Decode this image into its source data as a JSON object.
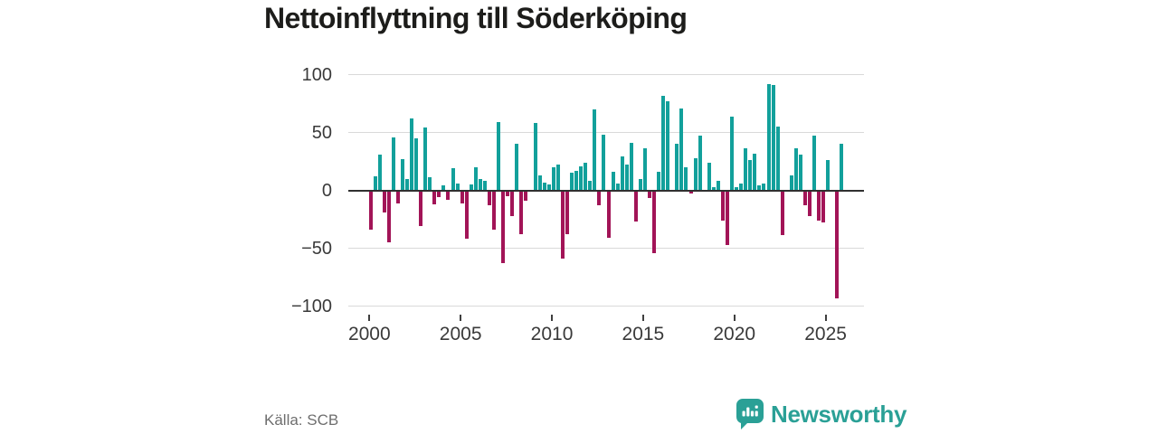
{
  "title": "Nettoinflyttning till Söderköping",
  "source": "Källa: SCB",
  "brand": {
    "name": "Newsworthy",
    "color": "#2aa096"
  },
  "chart_data": {
    "type": "bar",
    "title": "Nettoinflyttning till Söderköping",
    "frequency": "quarterly",
    "period_start": "2000 Q1",
    "period_end": "2025 Q4",
    "values": [
      -34,
      12,
      31,
      -19,
      -45,
      46,
      -11,
      27,
      10,
      62,
      45,
      -31,
      54,
      11,
      -12,
      -6,
      4,
      -8,
      19,
      6,
      -11,
      -42,
      5,
      20,
      10,
      8,
      -13,
      -34,
      59,
      -63,
      -5,
      -22,
      40,
      -38,
      -9,
      0,
      58,
      13,
      7,
      5,
      20,
      22,
      -59,
      -38,
      15,
      17,
      21,
      24,
      8,
      70,
      -13,
      48,
      -41,
      16,
      6,
      29,
      22,
      41,
      -27,
      10,
      36,
      -7,
      -54,
      16,
      82,
      77,
      0,
      40,
      71,
      20,
      -3,
      28,
      47,
      0,
      24,
      3,
      8,
      -26,
      -47,
      64,
      3,
      6,
      36,
      26,
      32,
      4,
      6,
      92,
      91,
      55,
      -39,
      0,
      13,
      36,
      31,
      -13,
      -22,
      47,
      -26,
      -28,
      26,
      0,
      -93,
      40
    ],
    "start_year": 2000,
    "x_tick_years": [
      "2000",
      "2005",
      "2010",
      "2015",
      "2020",
      "2025"
    ],
    "y_tick_labels": [
      "100",
      "50",
      "0",
      "−50",
      "−100"
    ],
    "y_ticks": [
      100,
      50,
      0,
      -50,
      -100
    ],
    "ylim": [
      -100,
      100
    ],
    "grid": "horizontal",
    "legend": "none",
    "colors": {
      "positive": "#12a09b",
      "negative": "#a21457"
    },
    "source": "Källa: SCB"
  }
}
